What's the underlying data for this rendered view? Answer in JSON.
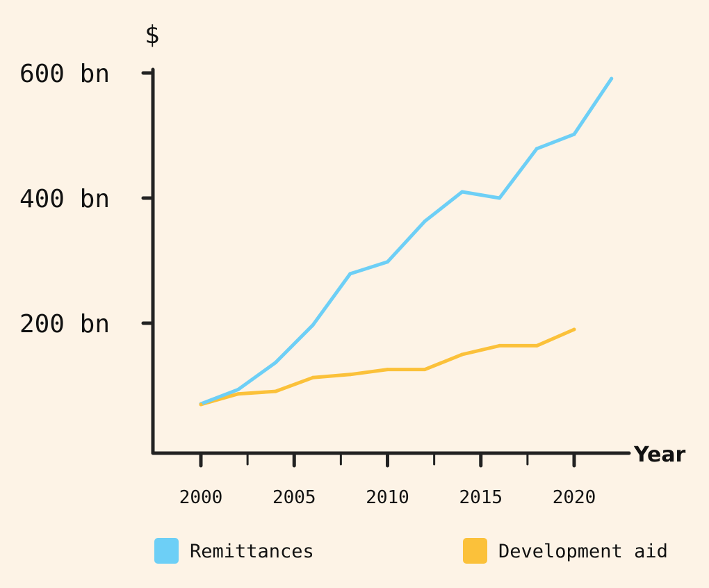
{
  "chart_data": {
    "type": "line",
    "title": "",
    "xlabel": "Year",
    "ylabel": "$",
    "xlim": [
      1997.5,
      2025
    ],
    "ylim": [
      0,
      620
    ],
    "x_ticks": [
      2000,
      2005,
      2010,
      2015,
      2020
    ],
    "x_tick_labels": [
      "2000",
      "2005",
      "2010",
      "2015",
      "2020"
    ],
    "y_ticks": [
      200,
      400,
      600
    ],
    "y_tick_labels": [
      "200 bn",
      "400 bn",
      "600 bn"
    ],
    "grid": false,
    "legend": "bottom",
    "series": [
      {
        "name": "Remittances",
        "color": "#6dcff6",
        "x": [
          2000,
          2002,
          2004,
          2006,
          2008,
          2010,
          2012,
          2014,
          2016,
          2018,
          2020,
          2022
        ],
        "values": [
          71,
          94,
          137,
          197,
          279,
          298,
          363,
          410,
          400,
          479,
          502,
          591
        ]
      },
      {
        "name": "Development aid",
        "color": "#fbc13a",
        "x": [
          2000,
          2002,
          2004,
          2006,
          2008,
          2010,
          2012,
          2014,
          2016,
          2018,
          2020
        ],
        "values": [
          70,
          87,
          91,
          113,
          118,
          126,
          126,
          150,
          164,
          164,
          190
        ]
      }
    ]
  }
}
